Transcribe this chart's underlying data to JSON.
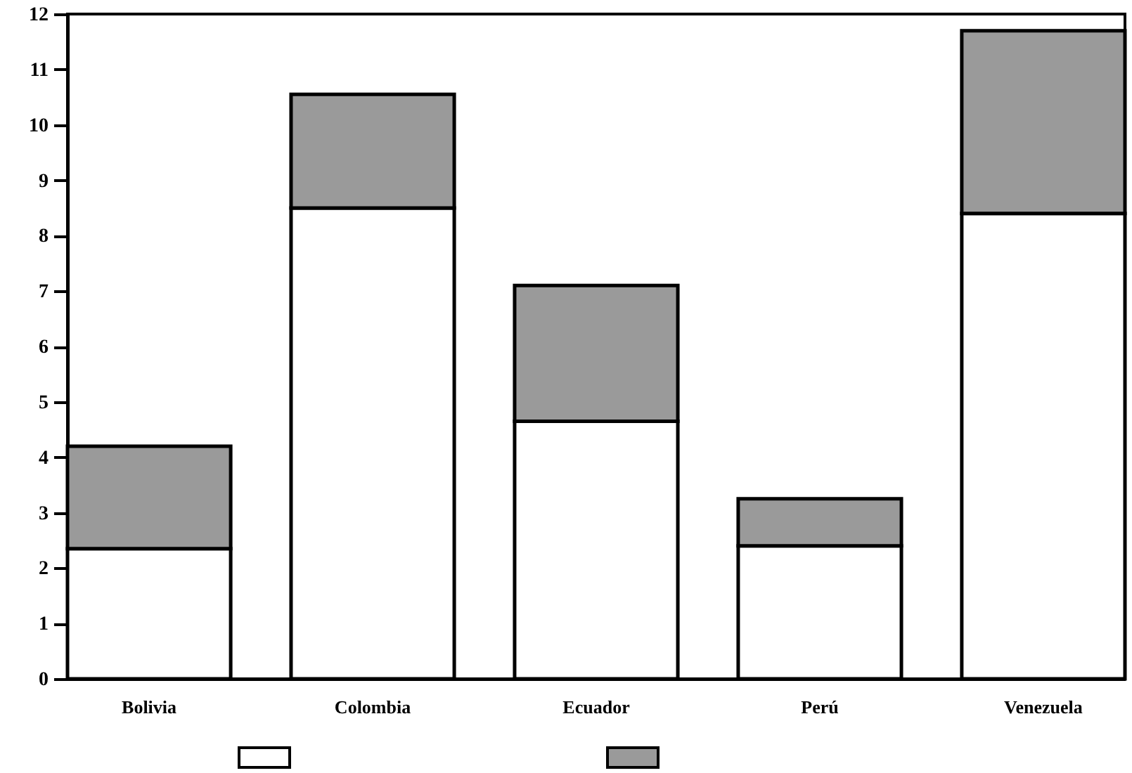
{
  "chart_data": {
    "type": "bar",
    "stacked": true,
    "categories": [
      "Bolivia",
      "Colombia",
      "Ecuador",
      "Perú",
      "Venezuela"
    ],
    "series": [
      {
        "color": "#ffffff",
        "values": [
          2.35,
          8.5,
          4.65,
          2.4,
          8.4
        ]
      },
      {
        "color": "#9a9a9a",
        "values": [
          1.85,
          2.05,
          2.45,
          0.85,
          3.3
        ]
      }
    ],
    "ylim": [
      0,
      12
    ],
    "yticks": [
      0,
      1,
      2,
      3,
      4,
      5,
      6,
      7,
      8,
      9,
      10,
      11,
      12
    ]
  }
}
